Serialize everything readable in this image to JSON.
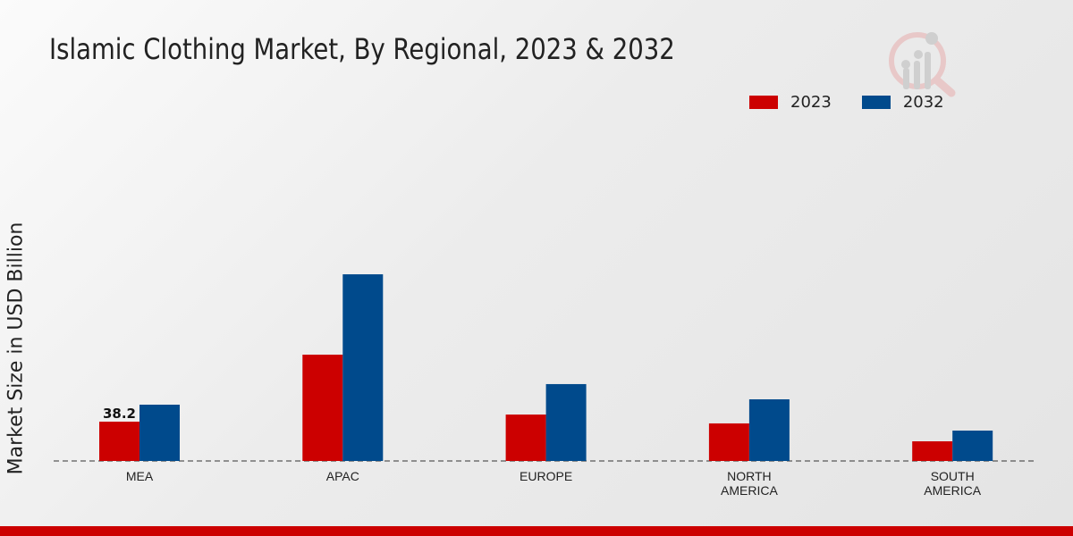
{
  "chart_data": {
    "type": "bar",
    "title": "Islamic Clothing Market, By Regional, 2023 & 2032",
    "xlabel": "",
    "ylabel": "Market Size in USD Billion",
    "categories": [
      [
        "MEA"
      ],
      [
        "APAC"
      ],
      [
        "EUROPE"
      ],
      [
        "NORTH",
        "AMERICA"
      ],
      [
        "SOUTH",
        "AMERICA"
      ]
    ],
    "series": [
      {
        "name": "2023",
        "color": "#cc0000",
        "values": [
          38.2,
          103.3,
          45.1,
          36.5,
          19.1
        ]
      },
      {
        "name": "2032",
        "color": "#004a8c",
        "values": [
          54.7,
          181.4,
          74.7,
          59.9,
          29.5
        ]
      }
    ],
    "data_labels": [
      {
        "series": 0,
        "index": 0,
        "text": "38.2"
      }
    ],
    "ylim": [
      0,
      200
    ],
    "grid": false,
    "legend_position": "top-right"
  }
}
